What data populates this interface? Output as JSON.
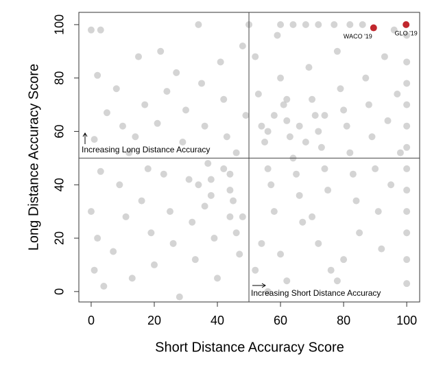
{
  "chart_data": {
    "type": "scatter",
    "xlabel": "Short Distance Accuracy Score",
    "ylabel": "Long Distance Accuracy Score",
    "xlim": [
      -3.9,
      104.1
    ],
    "ylim": [
      -3.9,
      104.6
    ],
    "xticks": [
      0,
      20,
      40,
      60,
      80,
      100
    ],
    "yticks": [
      0,
      20,
      40,
      60,
      80,
      100
    ],
    "reference_lines": {
      "x": 50,
      "y": 50
    },
    "annotations": [
      "Increasing Long Distance Accuracy",
      "Increasing Short Distance Accuracy"
    ],
    "series": [
      {
        "color": "#bdbdbd",
        "x": [
          0,
          3,
          2,
          5,
          1,
          3,
          0,
          2,
          1,
          4,
          8,
          10,
          12,
          9,
          11,
          7,
          13,
          15,
          17,
          14,
          18,
          16,
          19,
          20,
          22,
          24,
          21,
          23,
          25,
          26,
          28,
          27,
          30,
          29,
          31,
          32,
          33,
          34,
          35,
          36,
          37,
          38,
          39,
          40,
          41,
          42,
          43,
          44,
          45,
          46,
          47,
          48,
          49,
          46,
          44,
          48,
          50,
          52,
          53,
          54,
          55,
          56,
          57,
          58,
          54,
          52,
          56,
          59,
          60,
          61,
          62,
          63,
          64,
          65,
          66,
          67,
          60,
          62,
          68,
          69,
          70,
          71,
          72,
          73,
          74,
          75,
          70,
          72,
          76,
          77,
          78,
          79,
          80,
          81,
          82,
          83,
          84,
          85,
          80,
          78,
          86,
          87,
          88,
          89,
          90,
          91,
          92,
          93,
          94,
          95,
          96,
          97,
          98,
          100,
          100,
          100,
          100,
          100,
          100,
          100,
          100,
          100,
          100,
          100,
          100,
          60,
          64,
          72,
          82,
          58,
          66,
          62,
          68,
          56,
          74,
          42,
          38,
          36,
          44,
          34
        ],
        "y": [
          98,
          98,
          81,
          67,
          57,
          45,
          30,
          20,
          8,
          2,
          76,
          62,
          52,
          40,
          28,
          15,
          5,
          88,
          70,
          58,
          46,
          34,
          22,
          10,
          90,
          75,
          63,
          44,
          30,
          18,
          -2,
          82,
          68,
          56,
          42,
          26,
          12,
          100,
          78,
          62,
          48,
          36,
          20,
          5,
          86,
          72,
          58,
          44,
          34,
          22,
          14,
          92,
          66,
          52,
          38,
          28,
          100,
          88,
          74,
          62,
          56,
          46,
          40,
          30,
          18,
          8,
          0,
          96,
          80,
          70,
          64,
          58,
          50,
          44,
          36,
          26,
          14,
          4,
          100,
          84,
          72,
          66,
          60,
          54,
          46,
          38,
          28,
          18,
          8,
          100,
          90,
          76,
          68,
          62,
          52,
          44,
          34,
          22,
          12,
          4,
          100,
          80,
          70,
          58,
          46,
          30,
          16,
          88,
          64,
          40,
          98,
          74,
          52,
          96,
          86,
          78,
          70,
          62,
          54,
          46,
          38,
          30,
          22,
          12,
          3,
          100,
          100,
          100,
          100,
          66,
          62,
          72,
          56,
          60,
          66,
          46,
          42,
          32,
          28,
          40
        ]
      },
      {
        "color": "#c1272d",
        "x": [
          89.5,
          99.8
        ],
        "y": [
          98.8,
          100
        ],
        "labels": [
          "WACO '19",
          "GLO '19"
        ]
      }
    ]
  }
}
